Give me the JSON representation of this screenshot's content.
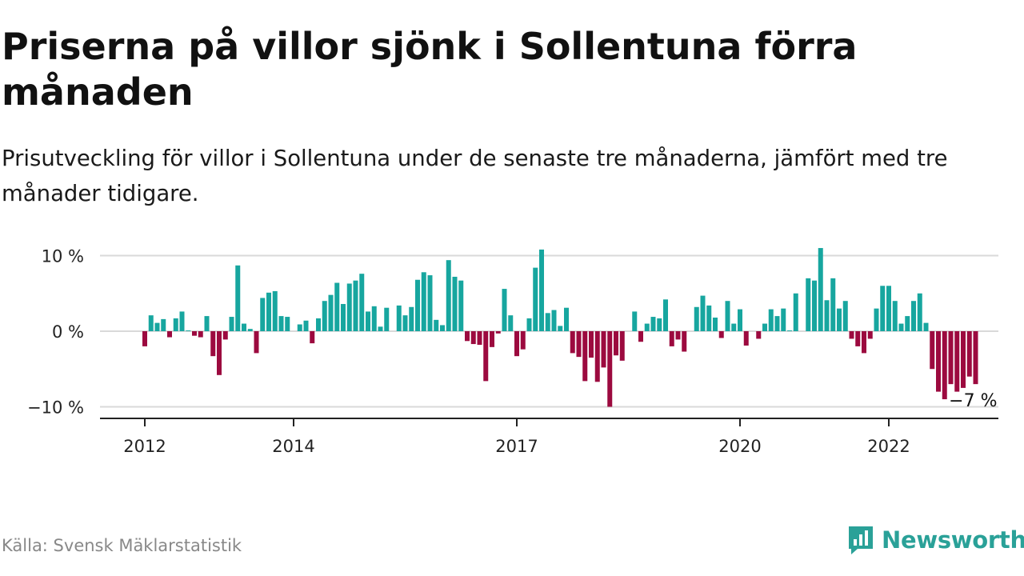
{
  "header": {
    "title": "Priserna på villor sjönk i Sollentuna förra månaden",
    "subtitle": "Prisutveckling för villor i Sollentuna under de senaste tre månaderna, jämfört med tre månader tidigare."
  },
  "footer": {
    "source": "Källa: Svensk Mäklarstatistik",
    "brand": "Newsworthy"
  },
  "colors": {
    "positive": "#17a69f",
    "negative": "#9c0a3f",
    "grid": "#d9d9d9",
    "axis": "#222222",
    "brand": "#2aa198"
  },
  "chart_data": {
    "type": "bar",
    "start": "2012-01",
    "frequency": "monthly",
    "unit": "%",
    "ylim": [
      -10.5,
      11
    ],
    "yticks": [
      {
        "value": 10,
        "label": "10 %"
      },
      {
        "value": 0,
        "label": "0 %"
      },
      {
        "value": -10,
        "label": "−10 %"
      }
    ],
    "xticks": [
      {
        "year": 2012,
        "label": "2012"
      },
      {
        "year": 2014,
        "label": "2014"
      },
      {
        "year": 2017,
        "label": "2017"
      },
      {
        "year": 2020,
        "label": "2020"
      },
      {
        "year": 2022,
        "label": "2022"
      }
    ],
    "last_label": "−7 %",
    "grid": true,
    "values": [
      -2.0,
      2.1,
      1.1,
      1.6,
      -0.8,
      1.7,
      2.6,
      0.1,
      -0.6,
      -0.8,
      2.0,
      -3.3,
      -5.8,
      -1.1,
      1.9,
      8.7,
      1.0,
      0.3,
      -2.9,
      4.4,
      5.1,
      5.3,
      2.0,
      1.9,
      0.0,
      0.9,
      1.4,
      -1.6,
      1.7,
      4.0,
      4.8,
      6.4,
      3.6,
      6.3,
      6.7,
      7.6,
      2.6,
      3.3,
      0.6,
      3.1,
      0.0,
      3.4,
      2.1,
      3.2,
      6.8,
      7.8,
      7.4,
      1.5,
      0.8,
      9.4,
      7.2,
      6.7,
      -1.3,
      -1.7,
      -1.8,
      -6.6,
      -2.1,
      -0.3,
      5.6,
      2.1,
      -3.3,
      -2.4,
      1.7,
      8.4,
      10.8,
      2.4,
      2.8,
      0.7,
      3.1,
      -2.9,
      -3.4,
      -6.6,
      -3.5,
      -6.7,
      -4.8,
      -10.0,
      -3.2,
      -3.9,
      0.0,
      2.6,
      -1.4,
      1.0,
      1.9,
      1.7,
      4.2,
      -2.0,
      -1.1,
      -2.7,
      0.0,
      3.2,
      4.7,
      3.4,
      1.8,
      -0.9,
      4.0,
      1.0,
      2.9,
      -1.9,
      0.0,
      -1.0,
      1.0,
      2.9,
      2.0,
      3.0,
      0.1,
      5.0,
      0.0,
      7.0,
      6.7,
      11.0,
      4.1,
      7.0,
      3.0,
      4.0,
      -1.0,
      -2.0,
      -2.9,
      -1.0,
      3.0,
      6.0,
      6.0,
      4.0,
      1.0,
      2.0,
      4.0,
      5.0,
      1.1,
      -5.0,
      -8.0,
      -9.0,
      -7.0,
      -8.0,
      -7.5,
      -6.0,
      -7.0
    ]
  }
}
